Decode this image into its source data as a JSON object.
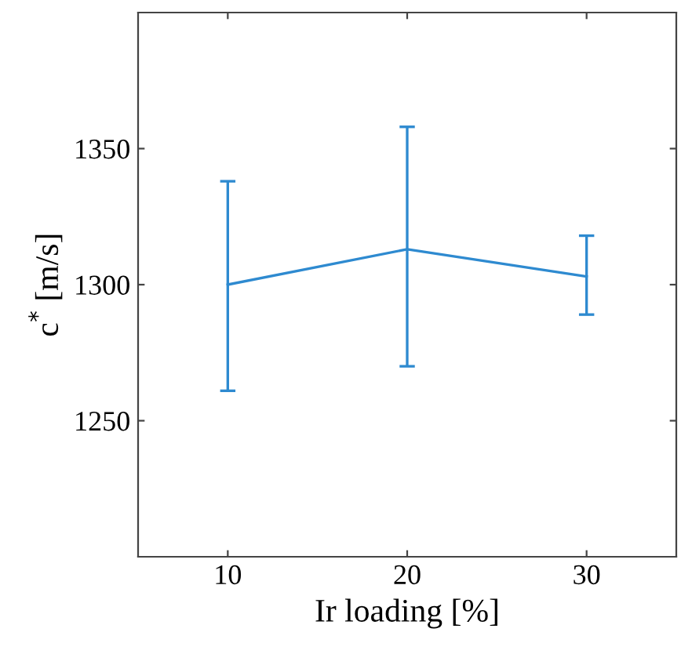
{
  "chart_data": {
    "type": "line",
    "xlabel": "Ir loading [%]",
    "ylabel": "c$^{*}$ [m/s]",
    "x": [
      10,
      20,
      30
    ],
    "series": [
      {
        "color": "#2e8ad0",
        "values": [
          1300,
          1313,
          1303
        ],
        "errors": [
          [
            1261,
            1338
          ],
          [
            1270,
            1358
          ],
          [
            1289,
            1318
          ]
        ]
      }
    ],
    "xlim": [
      5,
      35
    ],
    "xticks": [
      10,
      20,
      30
    ],
    "ylim": [
      1200,
      1400
    ],
    "yticks": [
      1250,
      1300,
      1350
    ],
    "grid": false,
    "legend": false
  }
}
